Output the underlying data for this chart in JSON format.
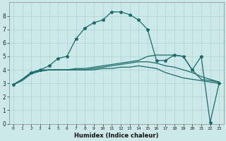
{
  "xlabel": "Humidex (Indice chaleur)",
  "bg_color": "#cce8e8",
  "grid_color": "#b0d8d8",
  "line_color": "#1a6b6b",
  "xlim": [
    -0.5,
    23.5
  ],
  "ylim": [
    0,
    9
  ],
  "xticks": [
    0,
    1,
    2,
    3,
    4,
    5,
    6,
    7,
    8,
    9,
    10,
    11,
    12,
    13,
    14,
    15,
    16,
    17,
    18,
    19,
    20,
    21,
    22,
    23
  ],
  "yticks": [
    0,
    1,
    2,
    3,
    4,
    5,
    6,
    7,
    8
  ],
  "curve_main_x": [
    0,
    1,
    2,
    3,
    4,
    5,
    6,
    7,
    8,
    9,
    10,
    11,
    12,
    13,
    14,
    15,
    16,
    17,
    18,
    19,
    20,
    21,
    22,
    23
  ],
  "curve_main_y": [
    2.9,
    3.3,
    3.8,
    4.0,
    4.3,
    4.85,
    5.0,
    6.3,
    7.1,
    7.5,
    7.7,
    8.3,
    8.3,
    8.1,
    7.7,
    7.0,
    4.7,
    4.7,
    5.1,
    5.0,
    4.0,
    5.0,
    0.1,
    3.0
  ],
  "curve_upper_x": [
    0,
    1,
    2,
    3,
    4,
    5,
    6,
    7,
    8,
    9,
    10,
    11,
    12,
    13,
    14,
    15,
    16,
    17,
    18,
    19,
    20,
    21,
    22,
    23
  ],
  "curve_upper_y": [
    2.9,
    3.3,
    3.8,
    4.0,
    4.0,
    4.0,
    4.0,
    4.1,
    4.1,
    4.2,
    4.3,
    4.4,
    4.5,
    4.6,
    4.7,
    5.0,
    5.1,
    5.1,
    5.1,
    5.0,
    4.0,
    3.3,
    3.2,
    3.1
  ],
  "curve_mid_x": [
    0,
    1,
    2,
    3,
    4,
    5,
    6,
    7,
    8,
    9,
    10,
    11,
    12,
    13,
    14,
    15,
    16,
    17,
    18,
    19,
    20,
    21,
    22,
    23
  ],
  "curve_mid_y": [
    2.9,
    3.3,
    3.8,
    3.9,
    4.0,
    4.0,
    4.0,
    4.0,
    4.0,
    4.1,
    4.2,
    4.3,
    4.4,
    4.5,
    4.6,
    4.6,
    4.5,
    4.3,
    4.2,
    4.0,
    3.8,
    3.5,
    3.3,
    3.1
  ],
  "curve_low_x": [
    0,
    1,
    2,
    3,
    4,
    5,
    6,
    7,
    8,
    9,
    10,
    11,
    12,
    13,
    14,
    15,
    16,
    17,
    18,
    19,
    20,
    21,
    22,
    23
  ],
  "curve_low_y": [
    2.9,
    3.2,
    3.7,
    3.9,
    4.0,
    4.0,
    4.0,
    4.0,
    4.0,
    4.0,
    4.1,
    4.1,
    4.2,
    4.2,
    4.3,
    4.2,
    4.1,
    3.8,
    3.6,
    3.4,
    3.3,
    3.2,
    3.1,
    3.0
  ]
}
